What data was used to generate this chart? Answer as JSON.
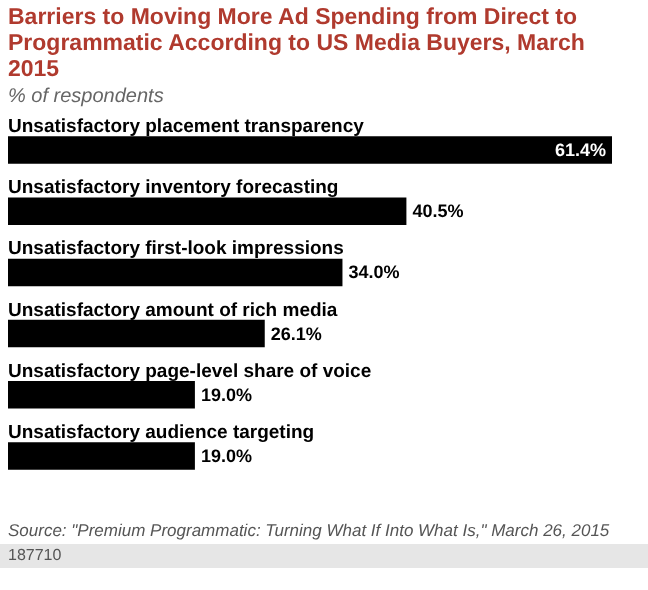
{
  "chart_data": {
    "type": "bar",
    "orientation": "horizontal",
    "title": "Barriers to Moving More Ad Spending from Direct to Programmatic According to US Media Buyers, March 2015",
    "subtitle": "% of respondents",
    "categories": [
      "Unsatisfactory placement transparency",
      "Unsatisfactory inventory forecasting",
      "Unsatisfactory first-look impressions",
      "Unsatisfactory amount of rich media",
      "Unsatisfactory page-level share of voice",
      "Unsatisfactory audience targeting"
    ],
    "values": [
      61.4,
      40.5,
      34.0,
      26.1,
      19.0,
      19.0
    ],
    "value_labels": [
      "61.4%",
      "40.5%",
      "34.0%",
      "26.1%",
      "19.0%",
      "19.0%"
    ],
    "color": "#000000",
    "annotations": [
      "Source: \"Premium Programmatic: Turning What If Into What Is,\" March 26, 2015",
      "187710"
    ]
  }
}
